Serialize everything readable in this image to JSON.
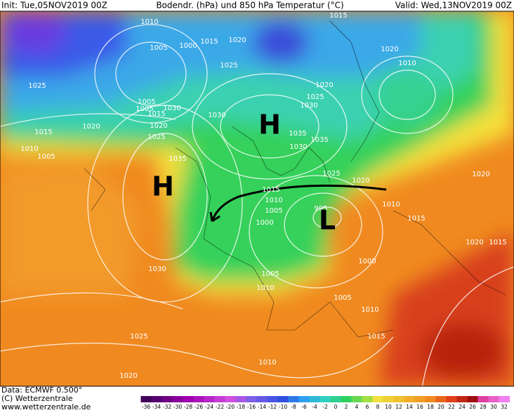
{
  "header": {
    "init": "Init: Tue,05NOV2019 00Z",
    "title": "Bodendr. (hPa) und 850 hPa Temperatur (°C)",
    "valid": "Valid: Wed,13NOV2019 00Z"
  },
  "pressure_systems": [
    "H",
    "H",
    "L"
  ],
  "isobar_labels": [
    1010,
    1015,
    1005,
    1000,
    1015,
    1020,
    1025,
    1025,
    1020,
    1010,
    1020,
    1005,
    1005,
    1015,
    1030,
    1030,
    1025,
    1030,
    1020,
    1020,
    1025,
    1015,
    1010,
    1005,
    1035,
    1035,
    1030,
    1035,
    1025,
    1020,
    1020,
    1015,
    1010,
    1010,
    1005,
    995,
    1000,
    1015,
    1020,
    1015,
    1030,
    1000,
    1005,
    1010,
    1005,
    1010,
    1025,
    1015,
    1010,
    1020
  ],
  "footer": {
    "data": "Data: ECMWF  0.500°",
    "copyright": "(C) Wetterzentrale",
    "url": "www.wetterzentrale.de"
  },
  "colorbar": {
    "labels": [
      -36,
      -34,
      -32,
      -30,
      -28,
      -26,
      -24,
      -22,
      -20,
      -18,
      -16,
      -14,
      -12,
      -10,
      -8,
      -6,
      -4,
      -2,
      0,
      2,
      4,
      6,
      8,
      10,
      12,
      14,
      16,
      18,
      20,
      22,
      24,
      26,
      28,
      30,
      32
    ]
  }
}
